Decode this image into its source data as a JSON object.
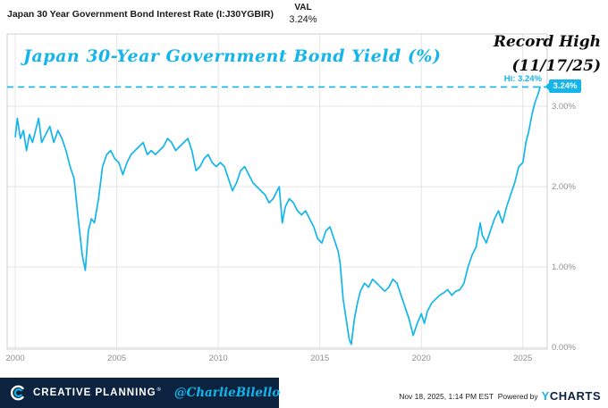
{
  "header": {
    "series_title": "Japan 30 Year Government Bond Interest Rate (I:J30YGBIR)",
    "val_label": "VAL",
    "val_value": "3.24%"
  },
  "annotations": {
    "chart_title": "Japan 30-Year Government Bond Yield (%)",
    "record_high_line1": "Record High",
    "record_high_line2": "(11/17/25)",
    "hi_label": "Hi: 3.24%",
    "badge": "3.24%"
  },
  "footer": {
    "brand": "CREATIVE PLANNING",
    "brand_reg": "®",
    "handle": "@CharlieBilello",
    "timestamp": "Nov 18, 2025, 1:14 PM EST",
    "powered_by": "Powered by",
    "ycharts_y": "Y",
    "ycharts_rest": "CHARTS"
  },
  "colors": {
    "accent": "#13b5ea",
    "navy": "#0c2340",
    "grid": "#e4e4e4",
    "plot_border": "#cfcfcf",
    "axis_text": "#8f8f8f"
  },
  "chart_data": {
    "type": "line",
    "title": "Japan 30-Year Government Bond Yield (%)",
    "xlabel": "",
    "ylabel": "",
    "legend": "none",
    "grid": true,
    "x_ticks": [
      2000,
      2005,
      2010,
      2015,
      2020,
      2025
    ],
    "y_ticks": [
      0,
      1,
      2,
      3
    ],
    "y_tick_labels": [
      "0.00%",
      "1.00%",
      "2.00%",
      "3.00%"
    ],
    "x_range": [
      1999.6,
      2026.2
    ],
    "y_range": [
      -0.02,
      3.9
    ],
    "hi_value": 3.24,
    "series": [
      {
        "name": "Japan 30 Year Government Bond Interest Rate (I:J30YGBIR)",
        "points": [
          [
            2000.0,
            2.62
          ],
          [
            2000.1,
            2.85
          ],
          [
            2000.25,
            2.6
          ],
          [
            2000.4,
            2.7
          ],
          [
            2000.55,
            2.45
          ],
          [
            2000.7,
            2.65
          ],
          [
            2000.85,
            2.55
          ],
          [
            2001.0,
            2.7
          ],
          [
            2001.15,
            2.85
          ],
          [
            2001.3,
            2.55
          ],
          [
            2001.5,
            2.65
          ],
          [
            2001.7,
            2.75
          ],
          [
            2001.9,
            2.55
          ],
          [
            2002.1,
            2.7
          ],
          [
            2002.3,
            2.6
          ],
          [
            2002.5,
            2.45
          ],
          [
            2002.7,
            2.25
          ],
          [
            2002.9,
            2.1
          ],
          [
            2003.1,
            1.6
          ],
          [
            2003.3,
            1.15
          ],
          [
            2003.45,
            0.96
          ],
          [
            2003.6,
            1.45
          ],
          [
            2003.75,
            1.6
          ],
          [
            2003.9,
            1.55
          ],
          [
            2004.1,
            1.85
          ],
          [
            2004.3,
            2.25
          ],
          [
            2004.5,
            2.4
          ],
          [
            2004.7,
            2.45
          ],
          [
            2004.9,
            2.35
          ],
          [
            2005.1,
            2.3
          ],
          [
            2005.3,
            2.15
          ],
          [
            2005.5,
            2.3
          ],
          [
            2005.7,
            2.4
          ],
          [
            2005.9,
            2.45
          ],
          [
            2006.1,
            2.5
          ],
          [
            2006.3,
            2.55
          ],
          [
            2006.5,
            2.4
          ],
          [
            2006.7,
            2.45
          ],
          [
            2006.9,
            2.4
          ],
          [
            2007.1,
            2.45
          ],
          [
            2007.3,
            2.5
          ],
          [
            2007.5,
            2.6
          ],
          [
            2007.7,
            2.55
          ],
          [
            2007.9,
            2.45
          ],
          [
            2008.1,
            2.5
          ],
          [
            2008.3,
            2.55
          ],
          [
            2008.5,
            2.6
          ],
          [
            2008.7,
            2.45
          ],
          [
            2008.9,
            2.2
          ],
          [
            2009.1,
            2.25
          ],
          [
            2009.3,
            2.35
          ],
          [
            2009.5,
            2.4
          ],
          [
            2009.7,
            2.3
          ],
          [
            2009.9,
            2.25
          ],
          [
            2010.1,
            2.3
          ],
          [
            2010.3,
            2.25
          ],
          [
            2010.5,
            2.1
          ],
          [
            2010.7,
            1.95
          ],
          [
            2010.9,
            2.05
          ],
          [
            2011.1,
            2.2
          ],
          [
            2011.3,
            2.25
          ],
          [
            2011.5,
            2.15
          ],
          [
            2011.7,
            2.05
          ],
          [
            2011.9,
            2.0
          ],
          [
            2012.1,
            1.95
          ],
          [
            2012.3,
            1.9
          ],
          [
            2012.5,
            1.8
          ],
          [
            2012.7,
            1.85
          ],
          [
            2012.9,
            1.95
          ],
          [
            2013.0,
            2.0
          ],
          [
            2013.15,
            1.55
          ],
          [
            2013.3,
            1.75
          ],
          [
            2013.5,
            1.85
          ],
          [
            2013.7,
            1.8
          ],
          [
            2013.9,
            1.7
          ],
          [
            2014.1,
            1.65
          ],
          [
            2014.3,
            1.7
          ],
          [
            2014.5,
            1.6
          ],
          [
            2014.7,
            1.5
          ],
          [
            2014.9,
            1.35
          ],
          [
            2015.1,
            1.3
          ],
          [
            2015.3,
            1.45
          ],
          [
            2015.5,
            1.5
          ],
          [
            2015.7,
            1.35
          ],
          [
            2015.9,
            1.2
          ],
          [
            2016.0,
            1.05
          ],
          [
            2016.15,
            0.6
          ],
          [
            2016.3,
            0.35
          ],
          [
            2016.45,
            0.1
          ],
          [
            2016.55,
            0.04
          ],
          [
            2016.7,
            0.35
          ],
          [
            2016.85,
            0.55
          ],
          [
            2017.0,
            0.7
          ],
          [
            2017.2,
            0.8
          ],
          [
            2017.4,
            0.75
          ],
          [
            2017.6,
            0.85
          ],
          [
            2017.8,
            0.8
          ],
          [
            2018.0,
            0.75
          ],
          [
            2018.2,
            0.7
          ],
          [
            2018.4,
            0.75
          ],
          [
            2018.6,
            0.85
          ],
          [
            2018.8,
            0.8
          ],
          [
            2019.0,
            0.65
          ],
          [
            2019.2,
            0.5
          ],
          [
            2019.4,
            0.35
          ],
          [
            2019.6,
            0.15
          ],
          [
            2019.8,
            0.3
          ],
          [
            2020.0,
            0.42
          ],
          [
            2020.15,
            0.3
          ],
          [
            2020.3,
            0.45
          ],
          [
            2020.5,
            0.55
          ],
          [
            2020.7,
            0.6
          ],
          [
            2020.9,
            0.65
          ],
          [
            2021.1,
            0.68
          ],
          [
            2021.3,
            0.72
          ],
          [
            2021.5,
            0.65
          ],
          [
            2021.7,
            0.7
          ],
          [
            2021.9,
            0.72
          ],
          [
            2022.1,
            0.8
          ],
          [
            2022.3,
            1.0
          ],
          [
            2022.5,
            1.15
          ],
          [
            2022.7,
            1.25
          ],
          [
            2022.9,
            1.55
          ],
          [
            2023.0,
            1.4
          ],
          [
            2023.2,
            1.3
          ],
          [
            2023.4,
            1.45
          ],
          [
            2023.6,
            1.6
          ],
          [
            2023.8,
            1.7
          ],
          [
            2024.0,
            1.55
          ],
          [
            2024.2,
            1.75
          ],
          [
            2024.4,
            1.9
          ],
          [
            2024.6,
            2.05
          ],
          [
            2024.8,
            2.25
          ],
          [
            2025.0,
            2.3
          ],
          [
            2025.15,
            2.55
          ],
          [
            2025.3,
            2.7
          ],
          [
            2025.45,
            2.9
          ],
          [
            2025.6,
            3.05
          ],
          [
            2025.75,
            3.15
          ],
          [
            2025.85,
            3.24
          ]
        ]
      }
    ]
  }
}
